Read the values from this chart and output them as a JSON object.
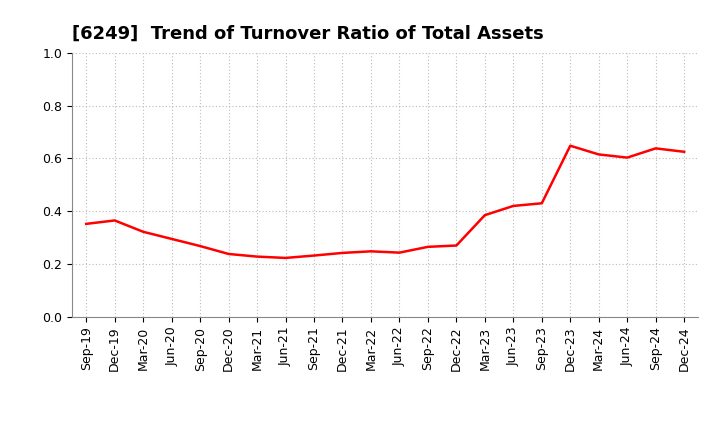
{
  "title": "[6249]  Trend of Turnover Ratio of Total Assets",
  "line_color": "#FF0000",
  "line_width": 1.8,
  "background_color": "#FFFFFF",
  "grid_color": "#BBBBBB",
  "ylim": [
    0.0,
    1.0
  ],
  "yticks": [
    0.0,
    0.2,
    0.4,
    0.6,
    0.8,
    1.0
  ],
  "x_labels": [
    "Sep-19",
    "Dec-19",
    "Mar-20",
    "Jun-20",
    "Sep-20",
    "Dec-20",
    "Mar-21",
    "Jun-21",
    "Sep-21",
    "Dec-21",
    "Mar-22",
    "Jun-22",
    "Sep-22",
    "Dec-22",
    "Mar-23",
    "Jun-23",
    "Sep-23",
    "Dec-23",
    "Mar-24",
    "Jun-24",
    "Sep-24",
    "Dec-24"
  ],
  "y_values": [
    0.352,
    0.365,
    0.322,
    0.295,
    0.268,
    0.238,
    0.228,
    0.223,
    0.232,
    0.242,
    0.248,
    0.243,
    0.265,
    0.27,
    0.385,
    0.42,
    0.43,
    0.648,
    0.615,
    0.603,
    0.638,
    0.625
  ],
  "title_fontsize": 13,
  "tick_fontsize": 9,
  "title_fontweight": "bold"
}
